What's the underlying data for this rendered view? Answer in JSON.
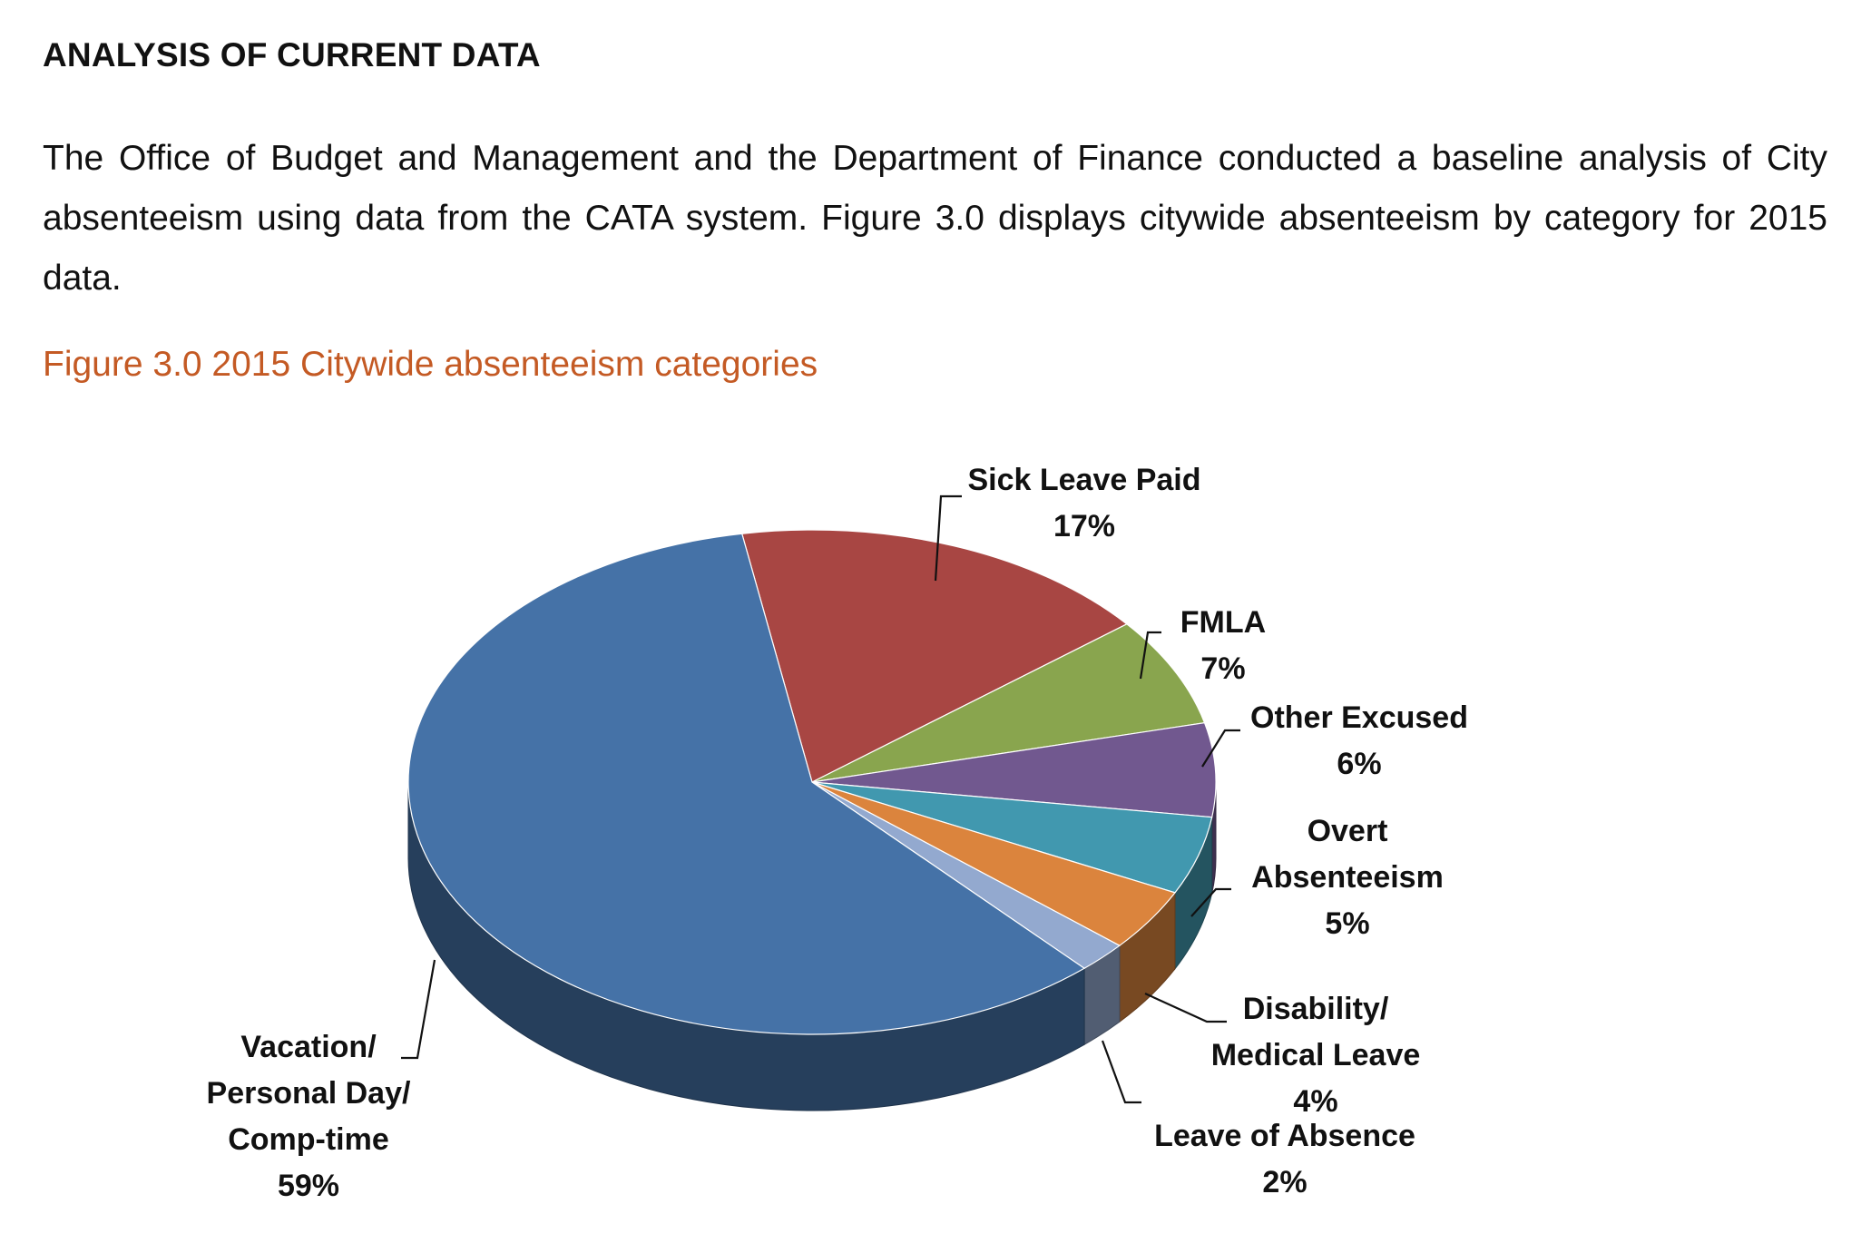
{
  "section_heading": "ANALYSIS OF CURRENT DATA",
  "paragraph": "The Office of Budget and Management and the Department of Finance conducted a baseline analysis of City absenteeism using data from the CATA system. Figure 3.0 displays citywide absenteeism by category for 2015 data.",
  "figure_caption": "Figure 3.0 2015 Citywide absenteeism categories",
  "colors": {
    "caption": "#c45a24",
    "label_text": "#111111"
  },
  "chart_data": {
    "type": "pie",
    "style": "3d",
    "title": "",
    "slices": [
      {
        "category": "Sick Leave Paid",
        "label_lines": [
          "Sick Leave Paid",
          "17%"
        ],
        "value": 17,
        "color": "#a84643"
      },
      {
        "category": "FMLA",
        "label_lines": [
          "FMLA",
          "7%"
        ],
        "value": 7,
        "color": "#89a54e"
      },
      {
        "category": "Other Excused",
        "label_lines": [
          "Other Excused",
          "6%"
        ],
        "value": 6,
        "color": "#71588f"
      },
      {
        "category": "Overt Absenteeism",
        "label_lines": [
          "Overt",
          "Absenteeism",
          "5%"
        ],
        "value": 5,
        "color": "#4198af"
      },
      {
        "category": "Disability/ Medical Leave",
        "label_lines": [
          "Disability/",
          "Medical Leave",
          "4%"
        ],
        "value": 4,
        "color": "#db843d"
      },
      {
        "category": "Leave of Absence",
        "label_lines": [
          "Leave of Absence",
          "2%"
        ],
        "value": 2,
        "color": "#93a9cf"
      },
      {
        "category": "Vacation/ Personal Day/ Comp-time",
        "label_lines": [
          "Vacation/",
          "Personal Day/",
          "Comp-time",
          "59%"
        ],
        "value": 59,
        "color": "#4572a7"
      }
    ]
  }
}
